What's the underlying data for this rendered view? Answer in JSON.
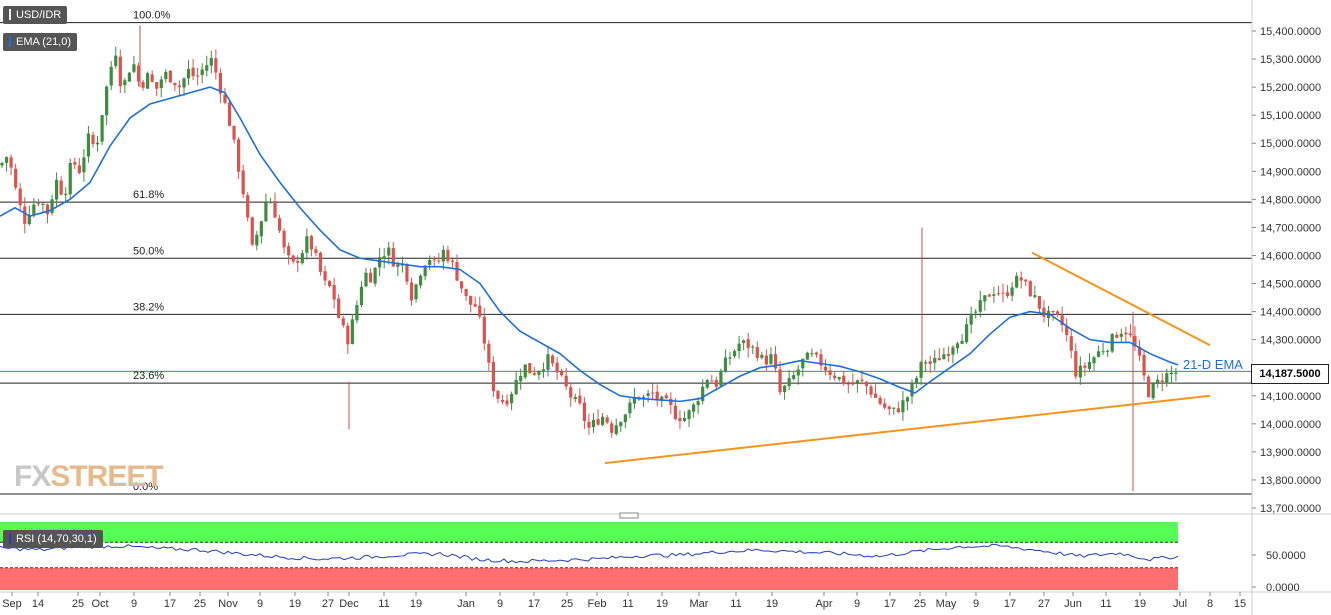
{
  "header": {
    "symbol": "USD/IDR",
    "ema_label": "EMA (21,0)",
    "rsi_label": "RSI (14,70,30,1)"
  },
  "colors": {
    "bull": "#3d8c40",
    "bear": "#d9534f",
    "ema": "#1e6fd9",
    "trendline": "#f7941d",
    "rsi_line": "#1e3fbf",
    "rsi_overbought": "#55ff55",
    "rsi_oversold": "#ff6f6f"
  },
  "price_tag": "14,187.5000",
  "logo": {
    "part1": "FX",
    "part2": "STREET"
  },
  "annotations": {
    "ema_label": "21-D EMA"
  },
  "chart_data": [
    {
      "type": "candlestick",
      "ylim": [
        13700,
        15450
      ],
      "yticks": [
        "13,700.0000",
        "13,800.0000",
        "13,900.0000",
        "14,000.0000",
        "14,100.0000",
        "14,200.0000",
        "14,300.0000",
        "14,400.0000",
        "14,500.0000",
        "14,600.0000",
        "14,700.0000",
        "14,800.0000",
        "14,900.0000",
        "15,000.0000",
        "15,100.0000",
        "15,200.0000",
        "15,300.0000",
        "15,400.0000"
      ],
      "xticks": [
        "Sep",
        "14",
        "25",
        "Oct",
        "9",
        "17",
        "25",
        "Nov",
        "9",
        "19",
        "27",
        "Dec",
        "11",
        "19",
        "Jan",
        "9",
        "17",
        "25",
        "Feb",
        "11",
        "19",
        "Mar",
        "11",
        "19",
        "Apr",
        "9",
        "17",
        "25",
        "May",
        "9",
        "17",
        "27",
        "Jun",
        "11",
        "19",
        "Jul",
        "8",
        "15"
      ],
      "fib_levels": [
        {
          "label": "100.0%",
          "value": 15430
        },
        {
          "label": "61.8%",
          "value": 14790
        },
        {
          "label": "50.0%",
          "value": 14590
        },
        {
          "label": "38.2%",
          "value": 14390
        },
        {
          "label": "23.6%",
          "value": 14145
        },
        {
          "label": "0.0%",
          "value": 13750
        }
      ],
      "last_price": 14187.5,
      "close_path": [
        [
          0,
          14920
        ],
        [
          8,
          14960
        ],
        [
          16,
          14830
        ],
        [
          24,
          14720
        ],
        [
          32,
          14780
        ],
        [
          40,
          14800
        ],
        [
          48,
          14750
        ],
        [
          56,
          14870
        ],
        [
          64,
          14810
        ],
        [
          72,
          14940
        ],
        [
          80,
          14900
        ],
        [
          88,
          15020
        ],
        [
          96,
          14980
        ],
        [
          104,
          15150
        ],
        [
          110,
          15260
        ],
        [
          116,
          15330
        ],
        [
          122,
          15180
        ],
        [
          128,
          15260
        ],
        [
          134,
          15280
        ],
        [
          140,
          15200
        ],
        [
          148,
          15240
        ],
        [
          156,
          15190
        ],
        [
          164,
          15250
        ],
        [
          172,
          15230
        ],
        [
          180,
          15200
        ],
        [
          188,
          15260
        ],
        [
          196,
          15230
        ],
        [
          204,
          15270
        ],
        [
          212,
          15300
        ],
        [
          220,
          15200
        ],
        [
          228,
          15100
        ],
        [
          236,
          14960
        ],
        [
          244,
          14810
        ],
        [
          252,
          14620
        ],
        [
          260,
          14710
        ],
        [
          268,
          14820
        ],
        [
          276,
          14740
        ],
        [
          284,
          14620
        ],
        [
          292,
          14560
        ],
        [
          300,
          14600
        ],
        [
          308,
          14660
        ],
        [
          316,
          14590
        ],
        [
          324,
          14500
        ],
        [
          332,
          14480
        ],
        [
          340,
          14360
        ],
        [
          348,
          14300
        ],
        [
          356,
          14410
        ],
        [
          364,
          14540
        ],
        [
          372,
          14520
        ],
        [
          380,
          14600
        ],
        [
          388,
          14620
        ],
        [
          396,
          14560
        ],
        [
          404,
          14570
        ],
        [
          412,
          14450
        ],
        [
          420,
          14540
        ],
        [
          428,
          14600
        ],
        [
          436,
          14560
        ],
        [
          444,
          14620
        ],
        [
          452,
          14570
        ],
        [
          460,
          14500
        ],
        [
          468,
          14430
        ],
        [
          476,
          14420
        ],
        [
          484,
          14300
        ],
        [
          492,
          14140
        ],
        [
          500,
          14080
        ],
        [
          508,
          14090
        ],
        [
          516,
          14150
        ],
        [
          524,
          14210
        ],
        [
          532,
          14180
        ],
        [
          540,
          14200
        ],
        [
          548,
          14230
        ],
        [
          556,
          14190
        ],
        [
          564,
          14140
        ],
        [
          572,
          14090
        ],
        [
          580,
          14060
        ],
        [
          588,
          13980
        ],
        [
          596,
          14010
        ],
        [
          604,
          14030
        ],
        [
          612,
          13980
        ],
        [
          620,
          14020
        ],
        [
          628,
          14050
        ],
        [
          636,
          14100
        ],
        [
          644,
          14090
        ],
        [
          652,
          14110
        ],
        [
          660,
          14080
        ],
        [
          668,
          14070
        ],
        [
          676,
          14030
        ],
        [
          684,
          14020
        ],
        [
          692,
          14050
        ],
        [
          700,
          14110
        ],
        [
          708,
          14170
        ],
        [
          716,
          14140
        ],
        [
          724,
          14210
        ],
        [
          732,
          14250
        ],
        [
          740,
          14290
        ],
        [
          748,
          14280
        ],
        [
          756,
          14260
        ],
        [
          764,
          14220
        ],
        [
          772,
          14240
        ],
        [
          780,
          14110
        ],
        [
          788,
          14140
        ],
        [
          796,
          14180
        ],
        [
          804,
          14230
        ],
        [
          812,
          14240
        ],
        [
          820,
          14220
        ],
        [
          828,
          14190
        ],
        [
          836,
          14170
        ],
        [
          844,
          14150
        ],
        [
          852,
          14140
        ],
        [
          860,
          14150
        ],
        [
          868,
          14130
        ],
        [
          876,
          14090
        ],
        [
          884,
          14060
        ],
        [
          892,
          14040
        ],
        [
          900,
          14060
        ],
        [
          908,
          14100
        ],
        [
          916,
          14160
        ],
        [
          924,
          14230
        ],
        [
          932,
          14210
        ],
        [
          940,
          14240
        ],
        [
          948,
          14260
        ],
        [
          956,
          14300
        ],
        [
          964,
          14320
        ],
        [
          972,
          14380
        ],
        [
          980,
          14420
        ],
        [
          988,
          14460
        ],
        [
          996,
          14480
        ],
        [
          1004,
          14450
        ],
        [
          1012,
          14500
        ],
        [
          1020,
          14520
        ],
        [
          1028,
          14480
        ],
        [
          1036,
          14440
        ],
        [
          1044,
          14390
        ],
        [
          1052,
          14380
        ],
        [
          1060,
          14370
        ],
        [
          1068,
          14300
        ],
        [
          1076,
          14180
        ],
        [
          1084,
          14200
        ],
        [
          1092,
          14230
        ],
        [
          1100,
          14260
        ],
        [
          1108,
          14280
        ],
        [
          1116,
          14320
        ],
        [
          1124,
          14340
        ],
        [
          1132,
          14300
        ],
        [
          1140,
          14220
        ],
        [
          1148,
          14110
        ],
        [
          1156,
          14140
        ],
        [
          1164,
          14170
        ],
        [
          1172,
          14180
        ],
        [
          1178,
          14185
        ]
      ],
      "ema_path": [
        [
          0,
          14740
        ],
        [
          15,
          14770
        ],
        [
          30,
          14740
        ],
        [
          50,
          14760
        ],
        [
          70,
          14800
        ],
        [
          90,
          14860
        ],
        [
          110,
          14990
        ],
        [
          130,
          15090
        ],
        [
          150,
          15140
        ],
        [
          170,
          15160
        ],
        [
          190,
          15180
        ],
        [
          210,
          15200
        ],
        [
          225,
          15180
        ],
        [
          240,
          15090
        ],
        [
          260,
          14960
        ],
        [
          280,
          14860
        ],
        [
          300,
          14770
        ],
        [
          320,
          14690
        ],
        [
          340,
          14620
        ],
        [
          360,
          14590
        ],
        [
          380,
          14580
        ],
        [
          400,
          14570
        ],
        [
          420,
          14560
        ],
        [
          440,
          14560
        ],
        [
          460,
          14550
        ],
        [
          480,
          14500
        ],
        [
          500,
          14400
        ],
        [
          520,
          14330
        ],
        [
          540,
          14290
        ],
        [
          560,
          14250
        ],
        [
          580,
          14190
        ],
        [
          600,
          14140
        ],
        [
          620,
          14100
        ],
        [
          640,
          14090
        ],
        [
          660,
          14085
        ],
        [
          680,
          14080
        ],
        [
          700,
          14090
        ],
        [
          720,
          14130
        ],
        [
          740,
          14170
        ],
        [
          760,
          14200
        ],
        [
          780,
          14210
        ],
        [
          800,
          14225
        ],
        [
          820,
          14215
        ],
        [
          840,
          14205
        ],
        [
          860,
          14185
        ],
        [
          880,
          14160
        ],
        [
          900,
          14130
        ],
        [
          915,
          14110
        ],
        [
          930,
          14150
        ],
        [
          950,
          14200
        ],
        [
          970,
          14250
        ],
        [
          990,
          14320
        ],
        [
          1010,
          14380
        ],
        [
          1030,
          14400
        ],
        [
          1050,
          14390
        ],
        [
          1070,
          14340
        ],
        [
          1090,
          14300
        ],
        [
          1110,
          14290
        ],
        [
          1130,
          14290
        ],
        [
          1150,
          14250
        ],
        [
          1170,
          14220
        ],
        [
          1178,
          14210
        ]
      ],
      "lower_trendline": [
        [
          605,
          13860
        ],
        [
          1210,
          14100
        ]
      ],
      "upper_trendline": [
        [
          1032,
          14610
        ],
        [
          1210,
          14280
        ]
      ]
    },
    {
      "type": "line",
      "series": [
        {
          "name": "RSI",
          "values_path": [
            [
              0,
              61
            ],
            [
              40,
              58
            ],
            [
              80,
              63
            ],
            [
              120,
              64
            ],
            [
              160,
              60
            ],
            [
              200,
              58
            ],
            [
              240,
              52
            ],
            [
              280,
              47
            ],
            [
              320,
              44
            ],
            [
              360,
              46
            ],
            [
              400,
              50
            ],
            [
              440,
              52
            ],
            [
              480,
              43
            ],
            [
              520,
              40
            ],
            [
              560,
              42
            ],
            [
              600,
              44
            ],
            [
              640,
              49
            ],
            [
              680,
              50
            ],
            [
              720,
              55
            ],
            [
              760,
              58
            ],
            [
              800,
              55
            ],
            [
              840,
              52
            ],
            [
              880,
              48
            ],
            [
              920,
              56
            ],
            [
              960,
              63
            ],
            [
              1000,
              64
            ],
            [
              1040,
              57
            ],
            [
              1080,
              48
            ],
            [
              1120,
              53
            ],
            [
              1150,
              43
            ],
            [
              1178,
              48
            ]
          ]
        }
      ],
      "ylim": [
        0,
        100
      ],
      "yticks": [
        "50.0000",
        "0.0000"
      ],
      "overbought": 70,
      "oversold": 30
    }
  ]
}
